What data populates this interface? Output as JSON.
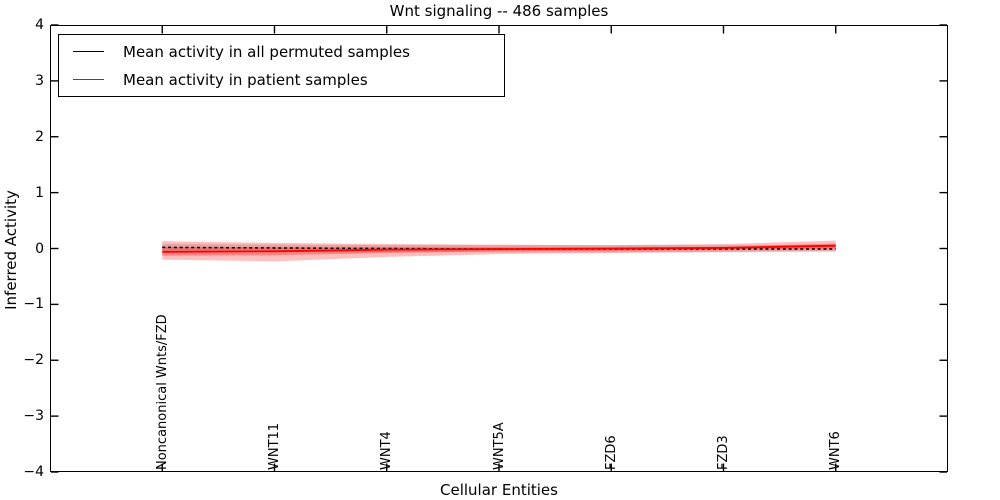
{
  "title": "Wnt signaling -- 486 samples",
  "xlabel": "Cellular Entities",
  "ylabel": "Inferred Activity",
  "legend": {
    "entries": [
      {
        "label": "Mean activity in all permuted samples",
        "color": "#000000"
      },
      {
        "label": "Mean activity in patient samples",
        "color": "#ff0000"
      }
    ]
  },
  "chart_data": {
    "type": "line",
    "title": "Wnt signaling -- 486 samples",
    "xlabel": "Cellular Entities",
    "ylabel": "Inferred Activity",
    "grid": false,
    "legend_position": "upper left",
    "categories": [
      "Noncanonical Wnts/FZD",
      "WNT11",
      "WNT4",
      "WNT5A",
      "FZD6",
      "FZD3",
      "WNT6"
    ],
    "xlim": [
      -1,
      7
    ],
    "ylim": [
      -4,
      4
    ],
    "yticks": [
      {
        "value": 4,
        "label": "4"
      },
      {
        "value": 3,
        "label": "3"
      },
      {
        "value": 2,
        "label": "2"
      },
      {
        "value": 1,
        "label": "1"
      },
      {
        "value": 0,
        "label": "0"
      },
      {
        "value": -1,
        "label": "−1"
      },
      {
        "value": -2,
        "label": "−2"
      },
      {
        "value": -3,
        "label": "−3"
      },
      {
        "value": -4,
        "label": "−4"
      }
    ],
    "series": [
      {
        "name": "Mean activity in all permuted samples",
        "color": "#000000",
        "style": "dashed",
        "values": [
          0.02,
          0.01,
          0.0,
          -0.01,
          -0.01,
          -0.01,
          -0.01
        ]
      },
      {
        "name": "Mean activity in patient samples",
        "color": "#ff0000",
        "style": "solid",
        "values": [
          -0.06,
          -0.05,
          -0.02,
          -0.01,
          0.0,
          0.01,
          0.05
        ]
      }
    ],
    "bands": [
      {
        "name": "permuted-sample-range",
        "color": "#999999",
        "opacity": 0.35,
        "upper": [
          0.08,
          0.07,
          0.06,
          0.06,
          0.06,
          0.06,
          0.07
        ],
        "lower": [
          -0.05,
          -0.06,
          -0.06,
          -0.07,
          -0.07,
          -0.07,
          -0.06
        ]
      },
      {
        "name": "patient-sample-range-outer",
        "color": "#ff0000",
        "opacity": 0.25,
        "upper": [
          0.13,
          0.1,
          0.08,
          0.07,
          0.06,
          0.08,
          0.14
        ],
        "lower": [
          -0.2,
          -0.23,
          -0.15,
          -0.1,
          -0.08,
          -0.06,
          -0.04
        ]
      },
      {
        "name": "patient-sample-range-inner",
        "color": "#ff0000",
        "opacity": 0.3,
        "upper": [
          0.03,
          0.02,
          0.02,
          0.02,
          0.02,
          0.03,
          0.09
        ],
        "lower": [
          -0.13,
          -0.12,
          -0.08,
          -0.05,
          -0.04,
          -0.02,
          0.0
        ]
      }
    ]
  }
}
